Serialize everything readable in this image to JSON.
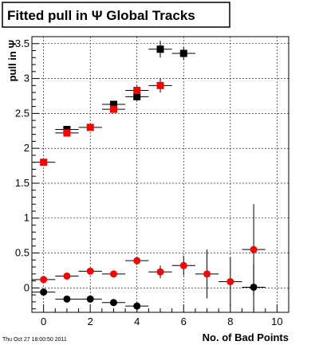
{
  "timestamp": "Thu Oct 27 18:00:50 2011",
  "chart_data": {
    "type": "scatter",
    "title": "Fitted pull in  Ψ   Global Tracks",
    "xlabel": "No. of Bad Points",
    "ylabel": "pull in Ψ",
    "xlim": [
      -0.5,
      10.5
    ],
    "ylim": [
      -0.35,
      3.6
    ],
    "x_ticks": [
      "0",
      "2",
      "4",
      "6",
      "8",
      "10"
    ],
    "y_ticks": [
      "0",
      "0.5",
      "1",
      "1.5",
      "2",
      "2.5",
      "3",
      "3.5"
    ],
    "grid": true,
    "colors": {
      "black": "#000000",
      "red": "#ff0000"
    },
    "series": [
      {
        "marker": "square",
        "color": "#000000",
        "x": [
          1,
          3,
          4,
          5,
          6
        ],
        "y": [
          2.27,
          2.63,
          2.74,
          3.42,
          3.36
        ],
        "xerr": [
          0.5,
          0.5,
          0.5,
          0.5,
          0.5
        ],
        "yerr": [
          0.04,
          0.05,
          0.06,
          0.12,
          0.09
        ]
      },
      {
        "marker": "square",
        "color": "#ff0000",
        "x": [
          0,
          1,
          2,
          3,
          4,
          5
        ],
        "y": [
          1.8,
          2.22,
          2.3,
          2.56,
          2.83,
          2.9
        ],
        "xerr": [
          0.5,
          0.5,
          0.5,
          0.5,
          0.5,
          0.5
        ],
        "yerr": [
          0.02,
          0.03,
          0.04,
          0.05,
          0.07,
          0.1
        ]
      },
      {
        "marker": "circle",
        "color": "#000000",
        "x": [
          0,
          1,
          2,
          3,
          4,
          9
        ],
        "y": [
          -0.06,
          -0.16,
          -0.16,
          -0.21,
          -0.26,
          0.01
        ],
        "xerr": [
          0.5,
          0.5,
          0.5,
          0.5,
          0.5,
          0.5
        ],
        "yerr": [
          0.03,
          0.03,
          0.03,
          0.05,
          0.06,
          0.33
        ]
      },
      {
        "marker": "circle",
        "color": "#ff0000",
        "x": [
          0,
          1,
          2,
          3,
          4,
          5,
          6,
          7,
          8,
          9
        ],
        "y": [
          0.12,
          0.17,
          0.24,
          0.2,
          0.39,
          0.23,
          0.32,
          0.2,
          0.09,
          0.55
        ],
        "xerr": [
          0.5,
          0.5,
          0.5,
          0.5,
          0.5,
          0.5,
          0.5,
          0.5,
          0.5,
          0.5
        ],
        "yerr": [
          0.02,
          0.03,
          0.04,
          0.05,
          0.06,
          0.09,
          0.14,
          0.35,
          0.35,
          0.65
        ]
      }
    ]
  }
}
